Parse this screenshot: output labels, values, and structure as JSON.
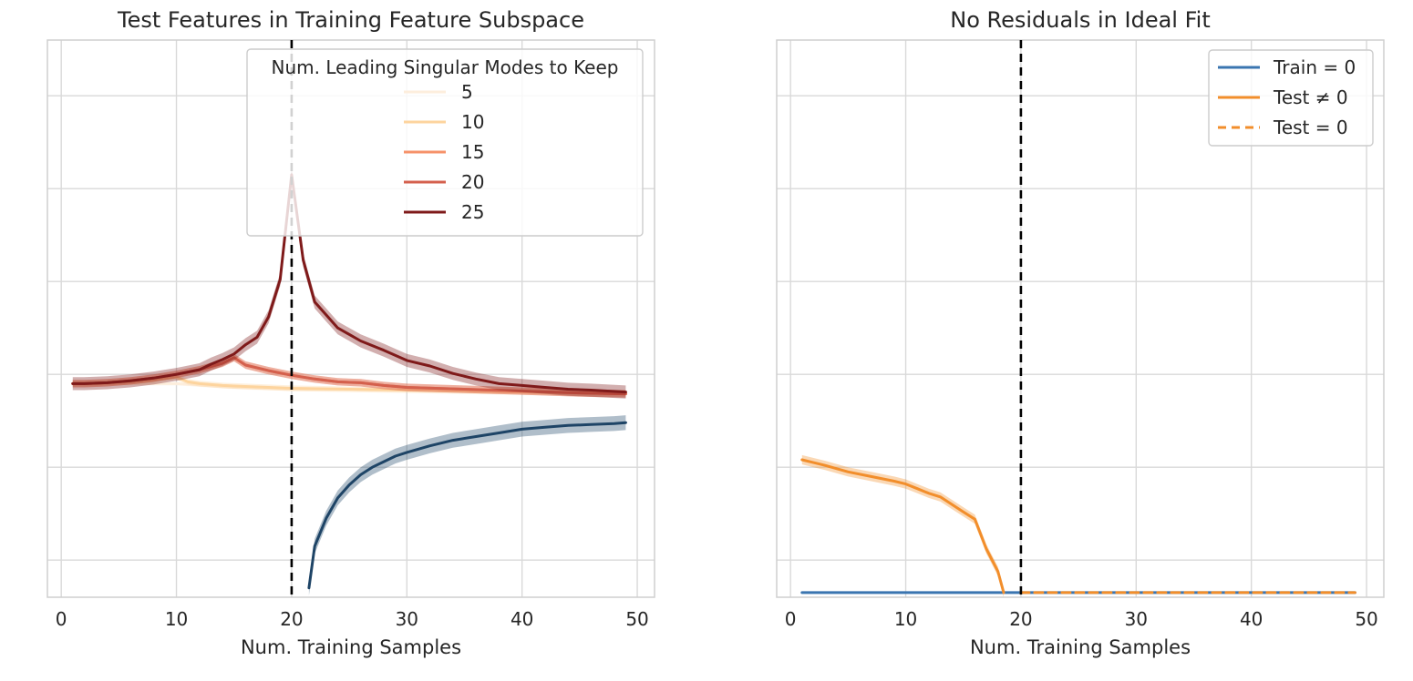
{
  "chart_data": [
    {
      "type": "line",
      "title": "Test Features in Training Feature Subspace",
      "xlabel": "Num. Training Samples",
      "ylabel": "",
      "xlim": [
        -1.2,
        51.5
      ],
      "ylim": [
        -0.9,
        5.1
      ],
      "xticks": [
        0,
        10,
        20,
        30,
        40,
        50
      ],
      "yticks": [
        -0.5,
        0.5,
        1.5,
        2.5,
        3.5,
        4.5
      ],
      "show_ytick_labels": false,
      "grid": true,
      "vline": {
        "x": 20,
        "style": "dashed",
        "color": "#000000"
      },
      "legend": {
        "title": "Num. Leading Singular Modes to Keep",
        "placement": "top-right",
        "entries": [
          "5",
          "10",
          "15",
          "20",
          "25"
        ]
      },
      "series": [
        {
          "name": "5",
          "color": "#fdeedd",
          "band": 0.02,
          "x": [
            1,
            2,
            3,
            4,
            5,
            6,
            7,
            8,
            9,
            10,
            15,
            20,
            25,
            30,
            35,
            40,
            45,
            49
          ],
          "y": [
            1.4,
            1.4,
            1.4,
            1.4,
            1.4,
            1.4,
            1.4,
            1.4,
            1.4,
            1.4,
            1.36,
            1.34,
            1.34,
            1.33,
            1.32,
            1.31,
            1.3,
            1.3
          ]
        },
        {
          "name": "10",
          "color": "#fdd49e",
          "band": 0.03,
          "x": [
            1,
            2,
            4,
            6,
            8,
            10,
            11,
            12,
            14,
            16,
            18,
            20,
            25,
            30,
            35,
            40,
            45,
            49
          ],
          "y": [
            1.4,
            1.4,
            1.41,
            1.42,
            1.44,
            1.47,
            1.42,
            1.4,
            1.38,
            1.37,
            1.36,
            1.35,
            1.34,
            1.33,
            1.32,
            1.31,
            1.3,
            1.3
          ]
        },
        {
          "name": "15",
          "color": "#f6926a",
          "band": 0.04,
          "x": [
            1,
            2,
            4,
            6,
            8,
            10,
            12,
            14,
            15,
            16,
            18,
            20,
            22,
            24,
            26,
            28,
            30,
            35,
            40,
            45,
            49
          ],
          "y": [
            1.4,
            1.4,
            1.41,
            1.43,
            1.46,
            1.5,
            1.55,
            1.62,
            1.68,
            1.6,
            1.54,
            1.49,
            1.45,
            1.42,
            1.41,
            1.38,
            1.36,
            1.34,
            1.32,
            1.3,
            1.29
          ]
        },
        {
          "name": "20",
          "color": "#d4604d",
          "band": 0.04,
          "x": [
            1,
            2,
            4,
            6,
            8,
            10,
            12,
            14,
            15,
            16,
            18,
            20,
            22,
            24,
            26,
            28,
            30,
            35,
            40,
            45,
            49
          ],
          "y": [
            1.4,
            1.4,
            1.41,
            1.43,
            1.46,
            1.5,
            1.55,
            1.62,
            1.68,
            1.6,
            1.54,
            1.49,
            1.45,
            1.42,
            1.41,
            1.38,
            1.36,
            1.34,
            1.32,
            1.3,
            1.29
          ]
        },
        {
          "name": "25",
          "color": "#7f1a1a",
          "band": 0.07,
          "x": [
            1,
            2,
            4,
            6,
            8,
            10,
            12,
            13,
            14,
            15,
            16,
            17,
            18,
            19,
            20,
            21,
            22,
            23,
            24,
            26,
            28,
            30,
            32,
            34,
            36,
            38,
            40,
            42,
            44,
            46,
            49
          ],
          "y": [
            1.4,
            1.4,
            1.41,
            1.43,
            1.46,
            1.5,
            1.55,
            1.61,
            1.66,
            1.72,
            1.82,
            1.9,
            2.12,
            2.52,
            3.65,
            2.73,
            2.28,
            2.14,
            2.0,
            1.86,
            1.76,
            1.65,
            1.59,
            1.51,
            1.45,
            1.4,
            1.38,
            1.36,
            1.34,
            1.33,
            1.31
          ]
        },
        {
          "name": "",
          "color": "#1e4466",
          "band": 0.08,
          "x": [
            21.5,
            22,
            23,
            24,
            25,
            26,
            27,
            28,
            29,
            30,
            32,
            34,
            36,
            38,
            40,
            42,
            44,
            46,
            48,
            49
          ],
          "y": [
            -0.8,
            -0.35,
            -0.05,
            0.17,
            0.31,
            0.42,
            0.5,
            0.56,
            0.62,
            0.66,
            0.73,
            0.79,
            0.83,
            0.87,
            0.91,
            0.93,
            0.95,
            0.96,
            0.97,
            0.98
          ]
        }
      ]
    },
    {
      "type": "line",
      "title": "No Residuals in Ideal Fit",
      "xlabel": "Num. Training Samples",
      "ylabel": "",
      "xlim": [
        -1.2,
        51.5
      ],
      "ylim": [
        -0.9,
        5.1
      ],
      "xticks": [
        0,
        10,
        20,
        30,
        40,
        50
      ],
      "yticks": [
        -0.5,
        0.5,
        1.5,
        2.5,
        3.5,
        4.5
      ],
      "show_ytick_labels": false,
      "grid": true,
      "vline": {
        "x": 20,
        "style": "dashed",
        "color": "#000000"
      },
      "legend": {
        "placement": "top-right",
        "entries": [
          {
            "label": "Train = 0",
            "color": "#3a75b0",
            "dash": false
          },
          {
            "label": "Test ≠ 0",
            "color": "#f28e2b",
            "dash": false
          },
          {
            "label": "Test = 0",
            "color": "#f28e2b",
            "dash": true
          }
        ]
      },
      "series": [
        {
          "name": "Train = 0",
          "color": "#3a75b0",
          "dash": false,
          "band": 0,
          "x": [
            1,
            49
          ],
          "y": [
            -0.85,
            -0.85
          ]
        },
        {
          "name": "Test ≠ 0",
          "color": "#f28e2b",
          "dash": false,
          "band": 0.05,
          "x": [
            1,
            3,
            5,
            7,
            9,
            10,
            11,
            12,
            13,
            14,
            15,
            16,
            17,
            18,
            18.5
          ],
          "y": [
            0.58,
            0.52,
            0.45,
            0.4,
            0.35,
            0.32,
            0.27,
            0.22,
            0.18,
            0.1,
            0.02,
            -0.06,
            -0.38,
            -0.62,
            -0.85
          ]
        },
        {
          "name": "Test = 0",
          "color": "#f28e2b",
          "dash": true,
          "band": 0,
          "x": [
            20,
            49
          ],
          "y": [
            -0.85,
            -0.85
          ]
        }
      ]
    }
  ]
}
